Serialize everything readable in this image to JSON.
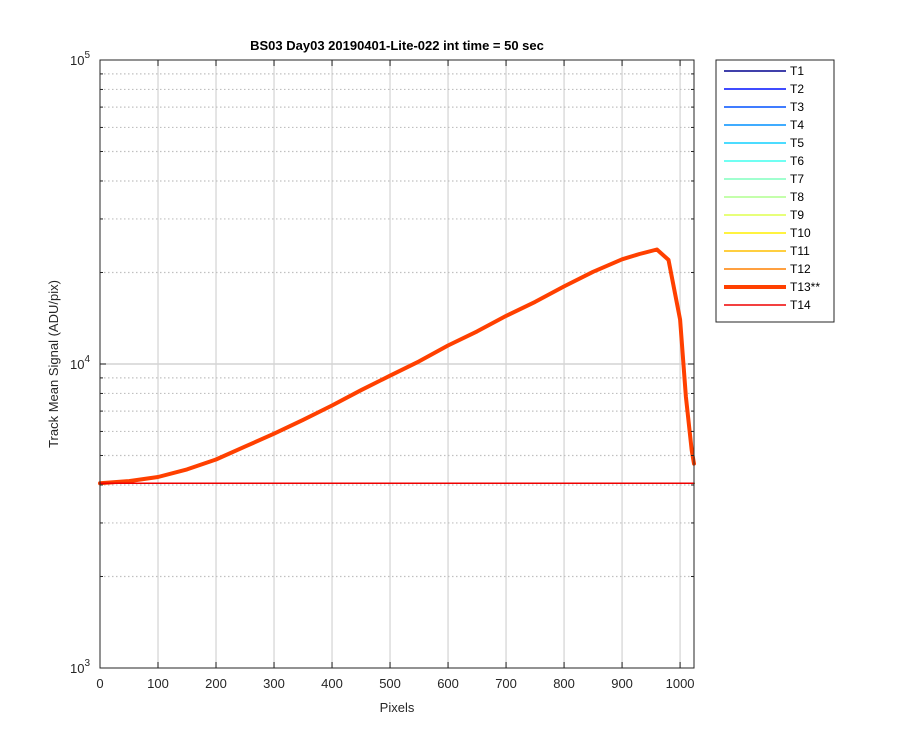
{
  "chart_data": {
    "type": "line",
    "title": "BS03 Day03 20190401-Lite-022 int time = 50 sec",
    "xlabel": "Pixels",
    "ylabel": "Track Mean Signal (ADU/pix)",
    "xlim": [
      0,
      1024
    ],
    "ylim": [
      1000,
      100000
    ],
    "yscale": "log",
    "grid": true,
    "legend_position": "outside-top-right",
    "xticks": [
      0,
      100,
      200,
      300,
      400,
      500,
      600,
      700,
      800,
      900,
      1000
    ],
    "xtick_labels": [
      "0",
      "100",
      "200",
      "300",
      "400",
      "500",
      "600",
      "700",
      "800",
      "900",
      "1000"
    ],
    "yticks": [
      {
        "value": 1000,
        "base": "10",
        "exp": "3"
      },
      {
        "value": 10000,
        "base": "10",
        "exp": "4"
      },
      {
        "value": 100000,
        "base": "10",
        "exp": "5"
      }
    ],
    "series": [
      {
        "name": "T1",
        "color": "#00008f",
        "width": 1.5,
        "x": [
          0,
          1024
        ],
        "y": [
          4050,
          4050
        ]
      },
      {
        "name": "T2",
        "color": "#0010ff",
        "width": 1.5,
        "x": [
          0,
          1024
        ],
        "y": [
          4050,
          4050
        ]
      },
      {
        "name": "T3",
        "color": "#0050ff",
        "width": 1.5,
        "x": [
          0,
          1024
        ],
        "y": [
          4050,
          4050
        ]
      },
      {
        "name": "T4",
        "color": "#0090ff",
        "width": 1.5,
        "x": [
          0,
          1024
        ],
        "y": [
          4050,
          4050
        ]
      },
      {
        "name": "T5",
        "color": "#10d0ff",
        "width": 1.5,
        "x": [
          0,
          1024
        ],
        "y": [
          4050,
          4050
        ]
      },
      {
        "name": "T6",
        "color": "#40ffef",
        "width": 1.5,
        "x": [
          0,
          1024
        ],
        "y": [
          4050,
          4050
        ]
      },
      {
        "name": "T7",
        "color": "#80ffbf",
        "width": 1.5,
        "x": [
          0,
          1024
        ],
        "y": [
          4050,
          4050
        ]
      },
      {
        "name": "T8",
        "color": "#b0ff8f",
        "width": 1.5,
        "x": [
          0,
          1024
        ],
        "y": [
          4050,
          4050
        ]
      },
      {
        "name": "T9",
        "color": "#dfff4f",
        "width": 1.5,
        "x": [
          0,
          1024
        ],
        "y": [
          4050,
          4050
        ]
      },
      {
        "name": "T10",
        "color": "#ffef00",
        "width": 1.5,
        "x": [
          0,
          1024
        ],
        "y": [
          4050,
          4050
        ]
      },
      {
        "name": "T11",
        "color": "#ffbf00",
        "width": 1.5,
        "x": [
          0,
          1024
        ],
        "y": [
          4050,
          4050
        ]
      },
      {
        "name": "T12",
        "color": "#ff8000",
        "width": 1.5,
        "x": [
          0,
          1024
        ],
        "y": [
          4050,
          4050
        ]
      },
      {
        "name": "T13**",
        "color": "#ff4000",
        "width": 4,
        "x": [
          0,
          50,
          100,
          150,
          200,
          250,
          300,
          350,
          400,
          450,
          500,
          550,
          600,
          650,
          700,
          750,
          800,
          850,
          900,
          930,
          960,
          980,
          1000,
          1010,
          1020,
          1024
        ],
        "y": [
          4050,
          4120,
          4250,
          4500,
          4850,
          5350,
          5900,
          6550,
          7300,
          8200,
          9150,
          10200,
          11500,
          12800,
          14400,
          16000,
          18000,
          20100,
          22100,
          23000,
          23800,
          22000,
          14000,
          7800,
          5200,
          4700
        ]
      },
      {
        "name": "T14",
        "color": "#ef0000",
        "width": 1.5,
        "x": [
          0,
          1024
        ],
        "y": [
          4050,
          4050
        ]
      }
    ]
  }
}
